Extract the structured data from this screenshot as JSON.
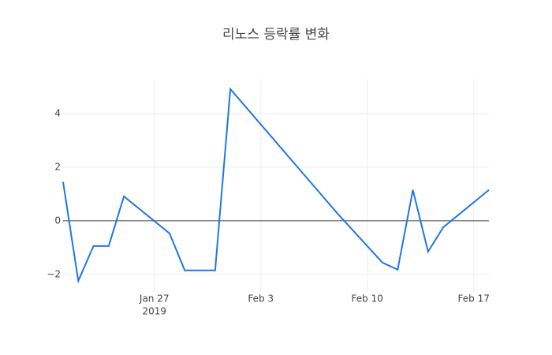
{
  "chart_data": {
    "type": "line",
    "title": "리노스 등락률 변화",
    "x": [
      "2019-01-21",
      "2019-01-22",
      "2019-01-23",
      "2019-01-24",
      "2019-01-25",
      "2019-01-28",
      "2019-01-29",
      "2019-01-31",
      "2019-02-01",
      "2019-02-08",
      "2019-02-11",
      "2019-02-12",
      "2019-02-13",
      "2019-02-14",
      "2019-02-15",
      "2019-02-18"
    ],
    "series": [
      {
        "color": "#1f77e4",
        "values": [
          1.45,
          -2.24,
          -0.94,
          -0.94,
          0.91,
          -0.47,
          -1.85,
          -1.85,
          4.91,
          0.3,
          -1.56,
          -1.82,
          1.15,
          -1.15,
          -0.24,
          1.15
        ]
      }
    ],
    "xlim": [
      "2019-01-21",
      "2019-02-18"
    ],
    "xticks": [
      {
        "value": "2019-01-27",
        "label": "Jan 27",
        "sublabel": "2019"
      },
      {
        "value": "2019-02-03",
        "label": "Feb 3"
      },
      {
        "value": "2019-02-10",
        "label": "Feb 10"
      },
      {
        "value": "2019-02-17",
        "label": "Feb 17"
      }
    ],
    "ylim": [
      -2.65,
      5.29
    ],
    "yticks": [
      {
        "value": -2,
        "label": "−2"
      },
      0,
      2,
      4
    ],
    "grid": true,
    "zeroline": true
  }
}
